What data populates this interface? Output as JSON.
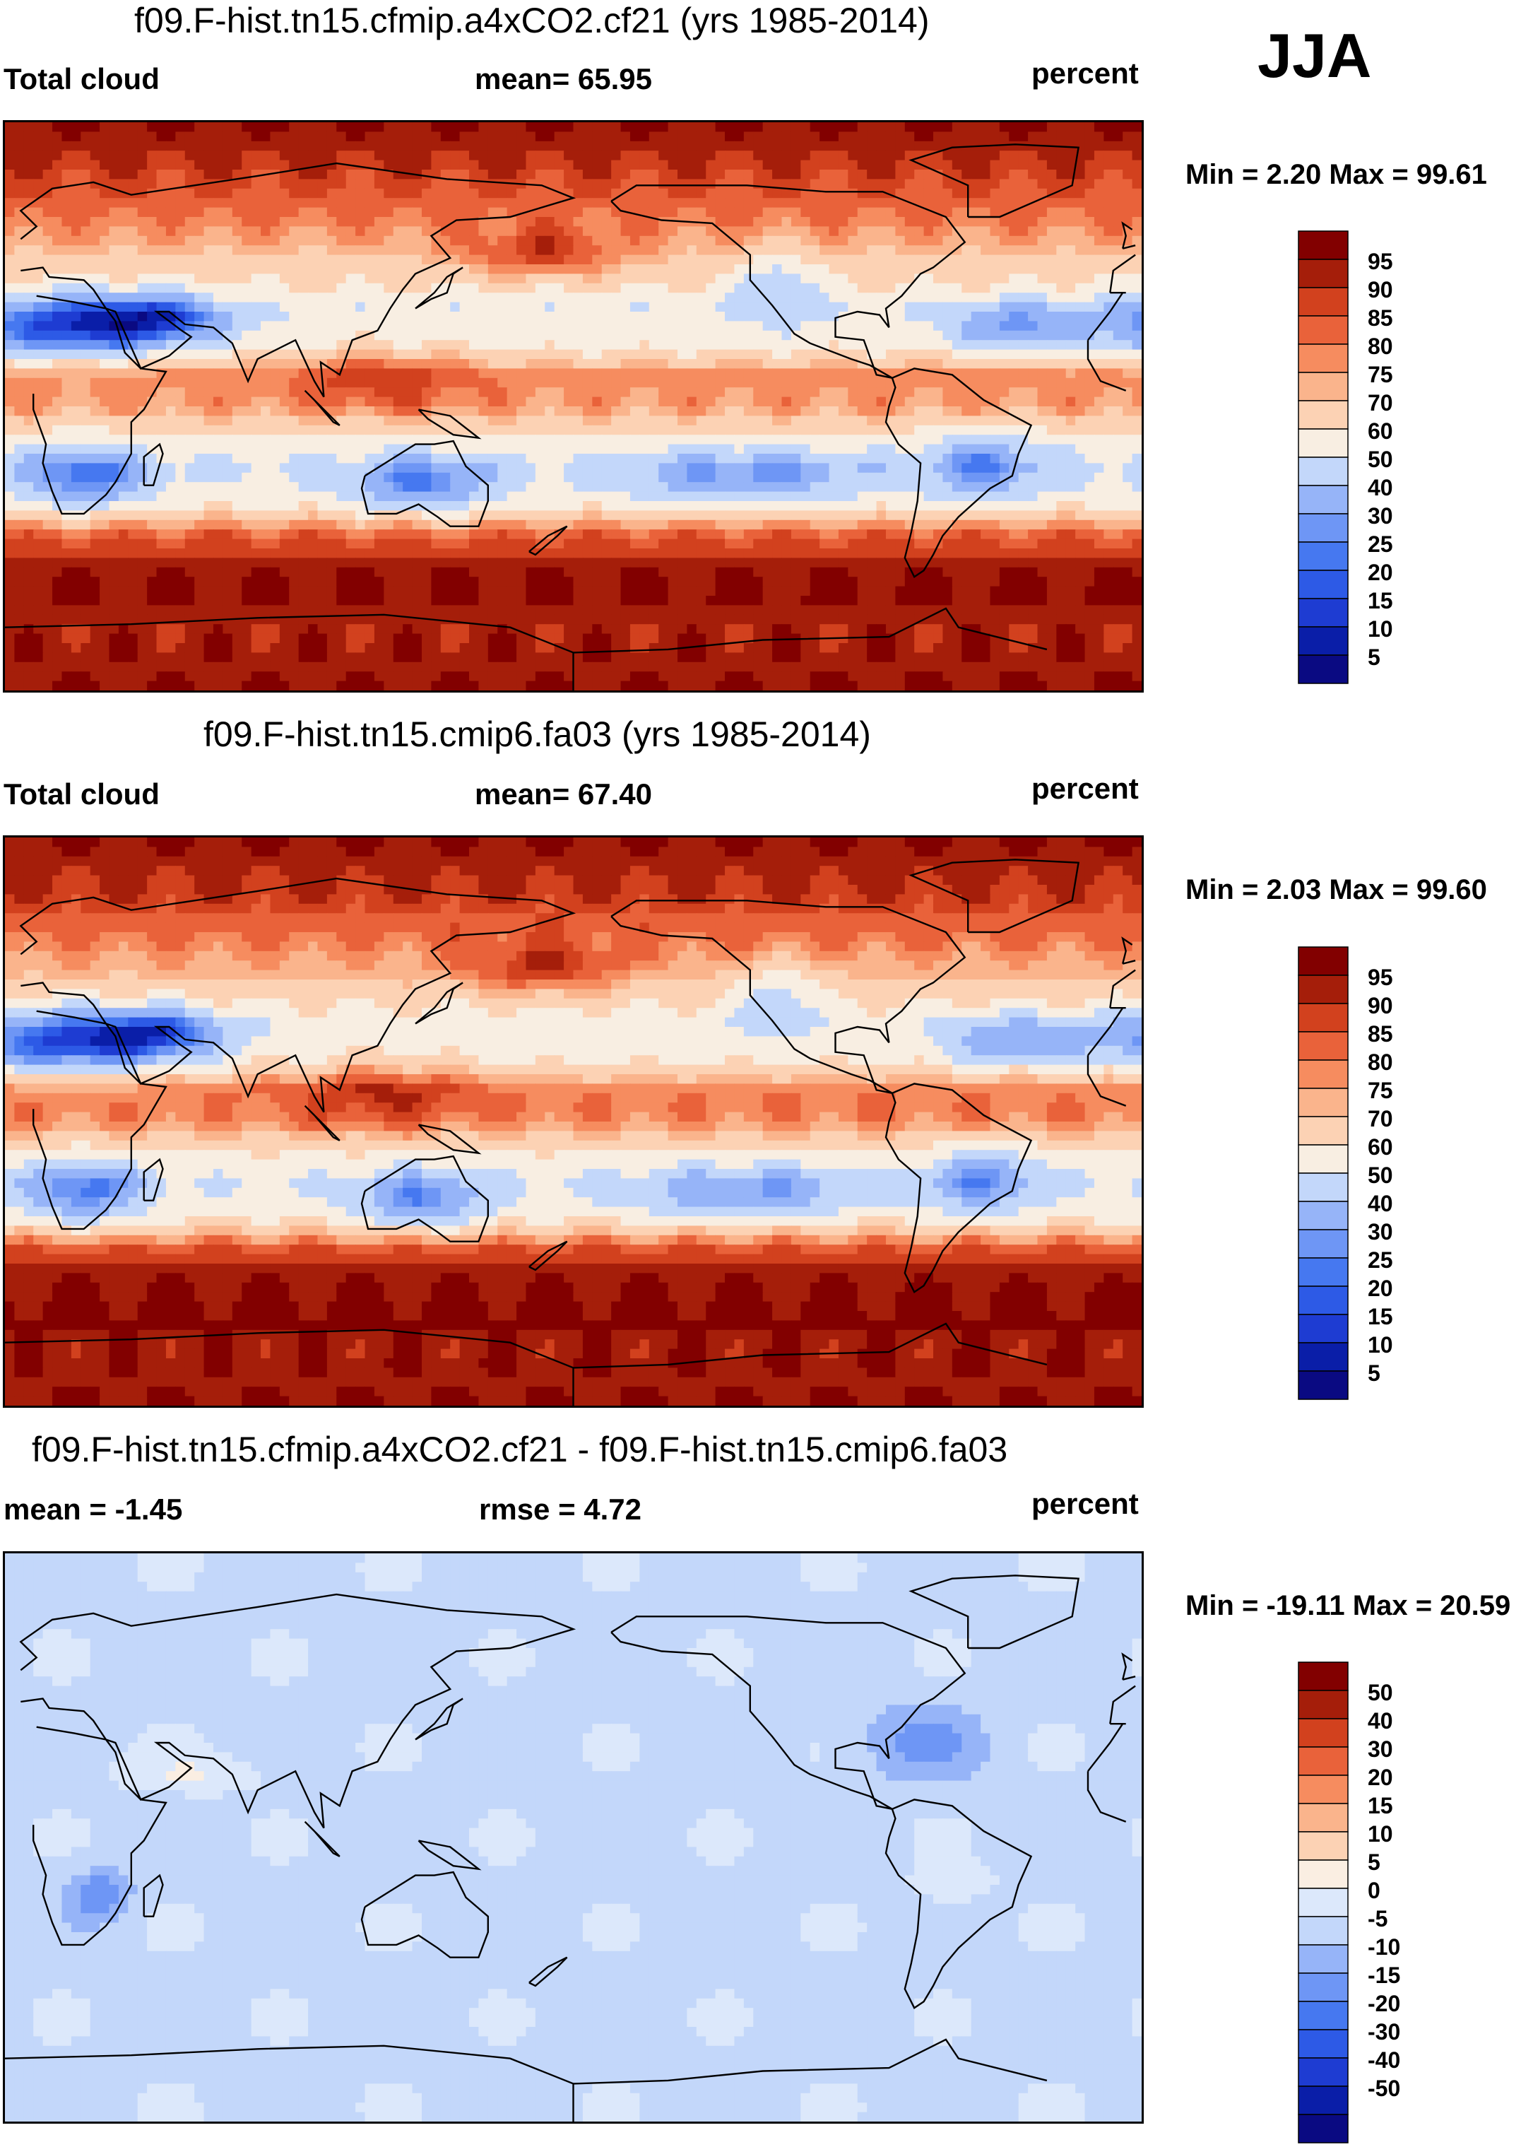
{
  "season": "JJA",
  "panels": [
    {
      "title": "f09.F-hist.tn15.cfmip.a4xCO2.cf21 (yrs 1985-2014)",
      "left_label": "Total cloud",
      "center_label": "mean=  65.95",
      "right_label": "percent",
      "minmax": "Min =   2.20 Max =  99.61"
    },
    {
      "title": "f09.F-hist.tn15.cmip6.fa03 (yrs 1985-2014)",
      "left_label": "Total cloud",
      "center_label": "mean=  67.40",
      "right_label": "percent",
      "minmax": "Min =   2.03 Max =  99.60"
    },
    {
      "title": "f09.F-hist.tn15.cfmip.a4xCO2.cf21 - f09.F-hist.tn15.cmip6.fa03",
      "left_label": "mean =  -1.45",
      "center_label": "rmse =    4.72",
      "right_label": "percent",
      "minmax": "Min = -19.11 Max =  20.59"
    }
  ],
  "colors": {
    "abs_scale": [
      "#0a0a82",
      "#0a1ea8",
      "#1e3cd2",
      "#2d5ae6",
      "#4678f0",
      "#6e96f5",
      "#96b4f8",
      "#c3d7fa",
      "#f8eee2",
      "#fcd2b4",
      "#fab48c",
      "#f68c5f",
      "#e9623a",
      "#d2411e",
      "#a51e0a",
      "#820000"
    ],
    "diff_scale": [
      "#0a0a82",
      "#0a1ea8",
      "#1e3cd2",
      "#2d5ae6",
      "#4678f0",
      "#6e96f5",
      "#96b4f8",
      "#c3d7fa",
      "#dce8fb",
      "#faeee2",
      "#fcd2b4",
      "#fab48c",
      "#f68c5f",
      "#e9623a",
      "#d2411e",
      "#a51e0a",
      "#820000"
    ]
  },
  "chart_data": [
    {
      "type": "heatmap",
      "title": "f09.F-hist.tn15.cfmip.a4xCO2.cf21 (yrs 1985-2014)",
      "variable": "Total cloud",
      "units": "percent",
      "mean": 65.95,
      "min": 2.2,
      "max": 99.61,
      "colorbar_levels": [
        5,
        10,
        15,
        20,
        25,
        30,
        40,
        50,
        60,
        70,
        75,
        80,
        85,
        90,
        95
      ],
      "projection": "global lat-lon, centered on 180",
      "zonal_pattern": {
        "lat": [
          -90,
          -70,
          -60,
          -50,
          -40,
          -30,
          -20,
          -10,
          0,
          10,
          20,
          30,
          40,
          50,
          60,
          70,
          90
        ],
        "cloud_percent": [
          95,
          92,
          96,
          93,
          82,
          55,
          48,
          58,
          76,
          78,
          55,
          50,
          62,
          72,
          80,
          86,
          96
        ]
      }
    },
    {
      "type": "heatmap",
      "title": "f09.F-hist.tn15.cmip6.fa03 (yrs 1985-2014)",
      "variable": "Total cloud",
      "units": "percent",
      "mean": 67.4,
      "min": 2.03,
      "max": 99.6,
      "colorbar_levels": [
        5,
        10,
        15,
        20,
        25,
        30,
        40,
        50,
        60,
        70,
        75,
        80,
        85,
        90,
        95
      ],
      "projection": "global lat-lon, centered on 180",
      "zonal_pattern": {
        "lat": [
          -90,
          -70,
          -60,
          -50,
          -40,
          -30,
          -20,
          -10,
          0,
          10,
          20,
          30,
          40,
          50,
          60,
          70,
          90
        ],
        "cloud_percent": [
          95,
          93,
          97,
          94,
          84,
          57,
          50,
          60,
          78,
          80,
          57,
          52,
          64,
          74,
          82,
          88,
          96
        ]
      }
    },
    {
      "type": "heatmap",
      "title": "f09.F-hist.tn15.cfmip.a4xCO2.cf21 - f09.F-hist.tn15.cmip6.fa03",
      "variable": "Total cloud difference",
      "units": "percent",
      "mean": -1.45,
      "rmse": 4.72,
      "min": -19.11,
      "max": 20.59,
      "colorbar_levels": [
        -50,
        -40,
        -30,
        -20,
        -15,
        -10,
        -5,
        0,
        5,
        10,
        15,
        20,
        30,
        40,
        50
      ],
      "projection": "global lat-lon, centered on 180"
    }
  ]
}
